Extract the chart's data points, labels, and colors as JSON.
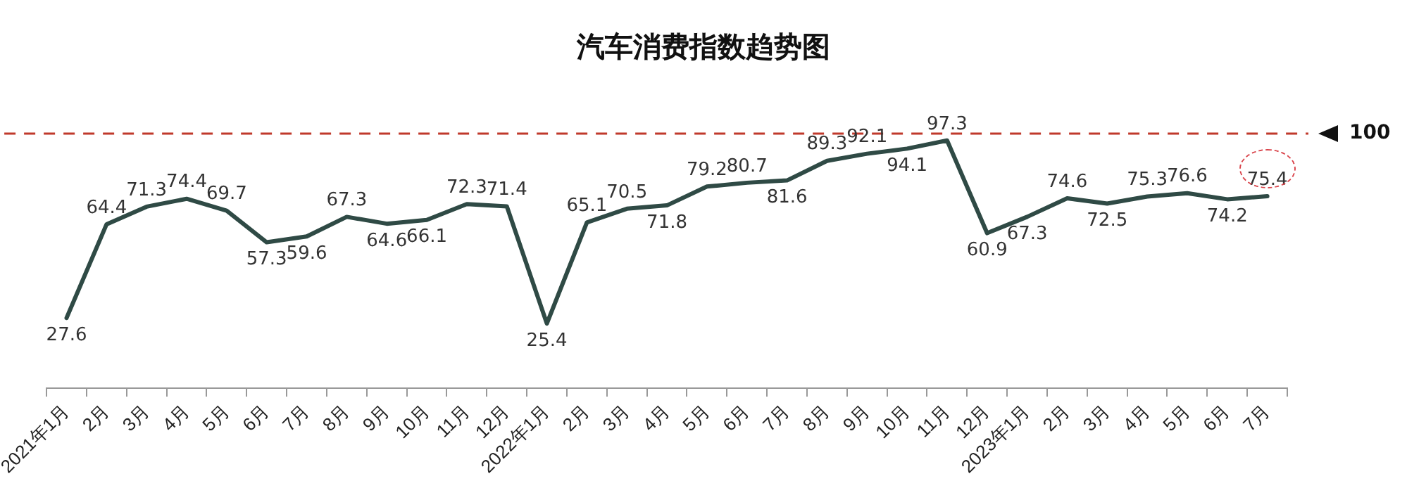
{
  "chart_data": {
    "type": "line",
    "title": "汽车消费指数趋势图",
    "categories": [
      "2021年1月",
      "2月",
      "3月",
      "4月",
      "5月",
      "6月",
      "7月",
      "8月",
      "9月",
      "10月",
      "11月",
      "12月",
      "2022年1月",
      "2月",
      "3月",
      "4月",
      "5月",
      "6月",
      "7月",
      "8月",
      "9月",
      "10月",
      "11月",
      "12月",
      "2023年1月",
      "2月",
      "3月",
      "4月",
      "5月",
      "6月",
      "7月"
    ],
    "series": [
      {
        "color": "#2f4a45",
        "values": [
          27.6,
          64.4,
          71.3,
          74.4,
          69.7,
          57.3,
          59.6,
          67.3,
          64.6,
          66.1,
          72.3,
          71.4,
          25.4,
          65.1,
          70.5,
          71.8,
          79.2,
          80.7,
          81.6,
          89.3,
          92.1,
          94.1,
          97.3,
          60.9,
          67.3,
          74.6,
          72.5,
          75.3,
          76.6,
          74.2,
          75.4
        ]
      }
    ],
    "ref_lines": [
      {
        "axis": "y",
        "value": 100,
        "label": "100",
        "color": "#c0392b",
        "line_style": "dashed"
      }
    ],
    "data_labels": true,
    "grid": false,
    "legend": false,
    "marker": "none",
    "line_style": "solid",
    "tick_labels": "x"
  }
}
